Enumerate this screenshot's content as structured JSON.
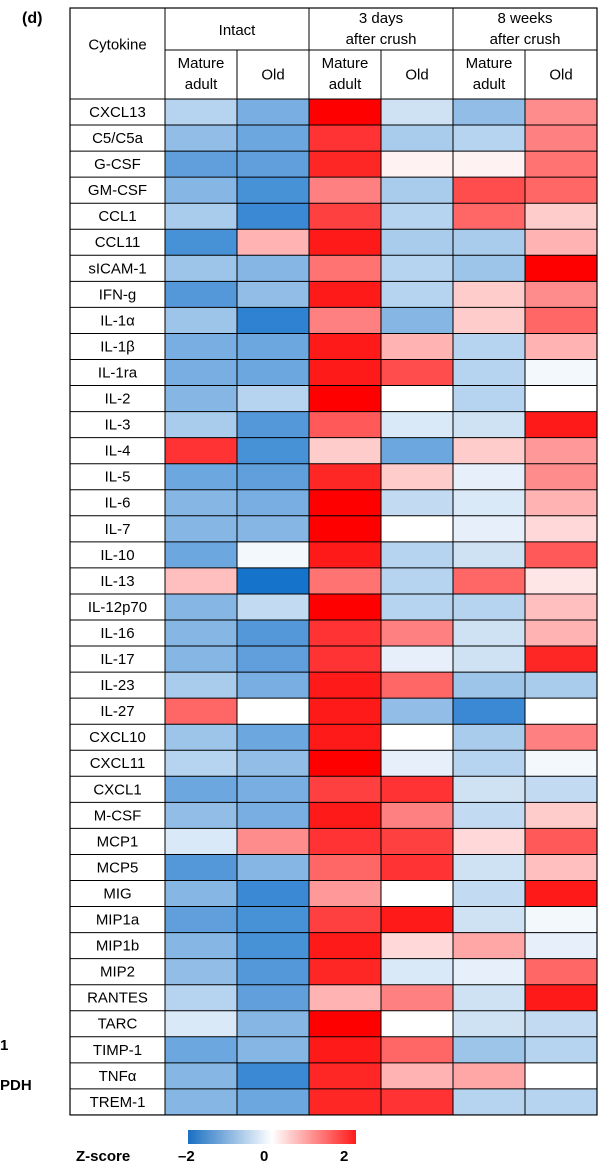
{
  "figure": {
    "panel": "(d)",
    "side_labels": [
      "1",
      "PDH"
    ]
  },
  "colors": {
    "negative": "#0a6cc9",
    "neutral": "#ffffff",
    "positive": "#ff0000",
    "grid": "#000000"
  },
  "chart_data": {
    "type": "heatmap",
    "row_header": "Cytokine",
    "groups": [
      {
        "label": "Intact",
        "columns": [
          "Mature\nadult",
          "Old"
        ]
      },
      {
        "label": "3 days\nafter crush",
        "columns": [
          "Mature\nadult",
          "Old"
        ]
      },
      {
        "label": "8 weeks\nafter crush",
        "columns": [
          "Mature\nadult",
          "Old"
        ]
      }
    ],
    "rows": [
      "CXCL13",
      "C5/C5a",
      "G-CSF",
      "GM-CSF",
      "CCL1",
      "CCL11",
      "sICAM-1",
      "IFN-g",
      "IL-1α",
      "IL-1β",
      "IL-1ra",
      "IL-2",
      "IL-3",
      "IL-4",
      "IL-5",
      "IL-6",
      "IL-7",
      "IL-10",
      "IL-13",
      "IL-12p70",
      "IL-16",
      "IL-17",
      "IL-23",
      "IL-27",
      "CXCL10",
      "CXCL11",
      "CXCL1",
      "M-CSF",
      "MCP1",
      "MCP5",
      "MIG",
      "MIP1a",
      "MIP1b",
      "MIP2",
      "RANTES",
      "TARC",
      "TIMP-1",
      "TNFα",
      "TREM-1"
    ],
    "values": [
      [
        -0.6,
        -1.1,
        2.0,
        -0.4,
        -0.9,
        0.9
      ],
      [
        -0.9,
        -1.2,
        1.6,
        -0.7,
        -0.6,
        1.0
      ],
      [
        -1.3,
        -1.3,
        1.7,
        0.1,
        0.1,
        1.1
      ],
      [
        -1.0,
        -1.5,
        1.0,
        -0.7,
        1.4,
        1.2
      ],
      [
        -0.7,
        -1.6,
        1.5,
        -0.6,
        1.2,
        0.4
      ],
      [
        -1.5,
        0.6,
        1.8,
        -0.7,
        -0.7,
        0.6
      ],
      [
        -0.8,
        -1.0,
        1.1,
        -0.6,
        -0.8,
        2.0
      ],
      [
        -1.4,
        -0.9,
        1.8,
        -0.6,
        0.4,
        0.9
      ],
      [
        -0.8,
        -1.7,
        1.0,
        -1.0,
        0.4,
        1.2
      ],
      [
        -1.1,
        -1.2,
        1.8,
        0.6,
        -0.6,
        0.6
      ],
      [
        -1.1,
        -1.2,
        1.8,
        1.4,
        -0.6,
        -0.1
      ],
      [
        -1.0,
        -0.6,
        2.0,
        0.0,
        -0.6,
        0.0
      ],
      [
        -0.7,
        -1.4,
        1.3,
        -0.3,
        -0.4,
        1.8
      ],
      [
        1.6,
        -1.5,
        0.4,
        -1.2,
        0.4,
        0.8
      ],
      [
        -1.2,
        -1.3,
        1.7,
        0.4,
        -0.2,
        0.9
      ],
      [
        -1.0,
        -1.1,
        2.0,
        -0.5,
        -0.3,
        0.6
      ],
      [
        -1.0,
        -1.0,
        2.0,
        0.0,
        -0.2,
        0.3
      ],
      [
        -1.2,
        -0.1,
        1.8,
        -0.6,
        -0.4,
        1.3
      ],
      [
        0.5,
        -1.9,
        1.1,
        -0.6,
        1.2,
        0.2
      ],
      [
        -1.0,
        -0.5,
        2.0,
        -0.6,
        -0.6,
        0.5
      ],
      [
        -1.0,
        -1.4,
        1.6,
        1.0,
        -0.4,
        0.6
      ],
      [
        -1.0,
        -1.3,
        1.6,
        -0.2,
        -0.4,
        1.7
      ],
      [
        -0.7,
        -1.1,
        1.8,
        1.2,
        -0.8,
        -0.7
      ],
      [
        1.2,
        0.0,
        1.8,
        -0.9,
        -1.6,
        0.0
      ],
      [
        -0.8,
        -1.2,
        1.8,
        0.0,
        -0.7,
        1.0
      ],
      [
        -0.6,
        -0.9,
        2.0,
        -0.2,
        -0.6,
        -0.1
      ],
      [
        -1.2,
        -1.1,
        1.5,
        1.6,
        -0.4,
        -0.5
      ],
      [
        -0.9,
        -1.1,
        1.8,
        1.0,
        -0.5,
        0.4
      ],
      [
        -0.3,
        0.9,
        1.6,
        1.5,
        0.3,
        1.3
      ],
      [
        -1.4,
        -1.0,
        1.2,
        1.6,
        -0.4,
        0.5
      ],
      [
        -1.0,
        -1.6,
        0.8,
        0.0,
        -0.5,
        1.8
      ],
      [
        -1.3,
        -1.5,
        1.5,
        1.8,
        -0.4,
        -0.1
      ],
      [
        -1.0,
        -1.5,
        1.8,
        0.3,
        0.7,
        -0.2
      ],
      [
        -0.9,
        -1.4,
        1.7,
        -0.3,
        -0.2,
        1.2
      ],
      [
        -0.6,
        -1.3,
        0.6,
        1.0,
        -0.4,
        1.8
      ],
      [
        -0.3,
        -1.0,
        2.0,
        0.0,
        -0.4,
        -0.5
      ],
      [
        -1.2,
        -1.0,
        1.8,
        1.2,
        -0.8,
        -0.6
      ],
      [
        -1.0,
        -1.6,
        1.7,
        0.6,
        0.7,
        0.0
      ],
      [
        -1.0,
        -1.2,
        1.7,
        1.6,
        -0.6,
        -0.6
      ]
    ],
    "colorbar": {
      "label": "Z-score",
      "ticks": [
        "–2",
        "0",
        "2"
      ],
      "range": [
        -2,
        2
      ]
    }
  }
}
